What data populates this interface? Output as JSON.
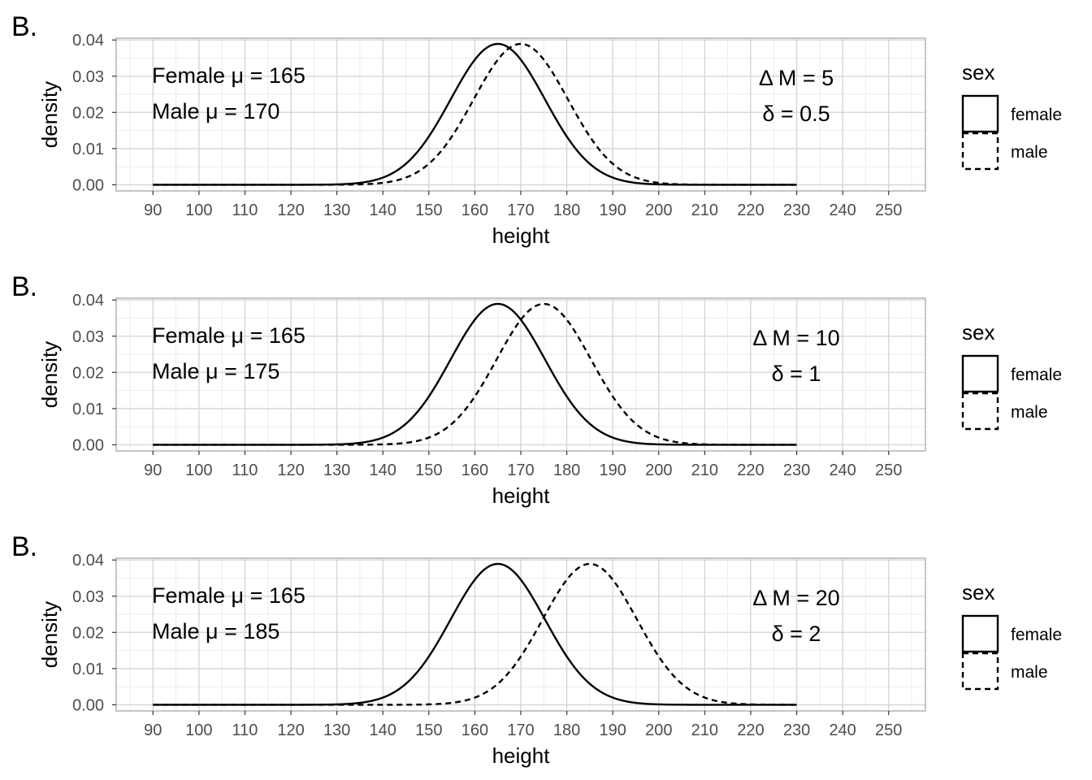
{
  "chart_data": [
    {
      "type": "line",
      "tag": "B.",
      "xlabel": "height",
      "ylabel": "density",
      "xlim": [
        82,
        258
      ],
      "ylim": [
        -0.0017,
        0.0405
      ],
      "x_ticks": [
        "90",
        "100",
        "110",
        "120",
        "130",
        "140",
        "150",
        "160",
        "170",
        "180",
        "190",
        "200",
        "210",
        "220",
        "230",
        "240",
        "250"
      ],
      "y_ticks": [
        "0.00",
        "0.01",
        "0.02",
        "0.03",
        "0.04"
      ],
      "grid": true,
      "series": [
        {
          "name": "female",
          "mean": 165,
          "sd": 10.25,
          "x_range": [
            90,
            230
          ],
          "dash": "solid"
        },
        {
          "name": "male",
          "mean": 170,
          "sd": 10.25,
          "x_range": [
            90,
            230
          ],
          "dash": "dashed"
        }
      ],
      "annotations": {
        "female_mean": "Female μ = 165",
        "male_mean": "Male μ = 170",
        "delta_m": "Δ M = 5",
        "delta": "δ = 0.5"
      },
      "legend": {
        "title": "sex",
        "position": "right",
        "items": [
          "female",
          "male"
        ]
      }
    },
    {
      "type": "line",
      "tag": "B.",
      "xlabel": "height",
      "ylabel": "density",
      "xlim": [
        82,
        258
      ],
      "ylim": [
        -0.0017,
        0.0405
      ],
      "x_ticks": [
        "90",
        "100",
        "110",
        "120",
        "130",
        "140",
        "150",
        "160",
        "170",
        "180",
        "190",
        "200",
        "210",
        "220",
        "230",
        "240",
        "250"
      ],
      "y_ticks": [
        "0.00",
        "0.01",
        "0.02",
        "0.03",
        "0.04"
      ],
      "grid": true,
      "series": [
        {
          "name": "female",
          "mean": 165,
          "sd": 10.25,
          "x_range": [
            90,
            230
          ],
          "dash": "solid"
        },
        {
          "name": "male",
          "mean": 175,
          "sd": 10.25,
          "x_range": [
            90,
            230
          ],
          "dash": "dashed"
        }
      ],
      "annotations": {
        "female_mean": "Female μ = 165",
        "male_mean": "Male μ = 175",
        "delta_m": "Δ M = 10",
        "delta": "δ = 1"
      },
      "legend": {
        "title": "sex",
        "position": "right",
        "items": [
          "female",
          "male"
        ]
      }
    },
    {
      "type": "line",
      "tag": "B.",
      "xlabel": "height",
      "ylabel": "density",
      "xlim": [
        82,
        258
      ],
      "ylim": [
        -0.0017,
        0.0405
      ],
      "x_ticks": [
        "90",
        "100",
        "110",
        "120",
        "130",
        "140",
        "150",
        "160",
        "170",
        "180",
        "190",
        "200",
        "210",
        "220",
        "230",
        "240",
        "250"
      ],
      "y_ticks": [
        "0.00",
        "0.01",
        "0.02",
        "0.03",
        "0.04"
      ],
      "grid": true,
      "series": [
        {
          "name": "female",
          "mean": 165,
          "sd": 10.25,
          "x_range": [
            90,
            230
          ],
          "dash": "solid"
        },
        {
          "name": "male",
          "mean": 185,
          "sd": 10.25,
          "x_range": [
            90,
            230
          ],
          "dash": "dashed"
        }
      ],
      "annotations": {
        "female_mean": "Female μ = 165",
        "male_mean": "Male μ = 185",
        "delta_m": "Δ M = 20",
        "delta": "δ = 2"
      },
      "legend": {
        "title": "sex",
        "position": "right",
        "items": [
          "female",
          "male"
        ]
      }
    }
  ]
}
